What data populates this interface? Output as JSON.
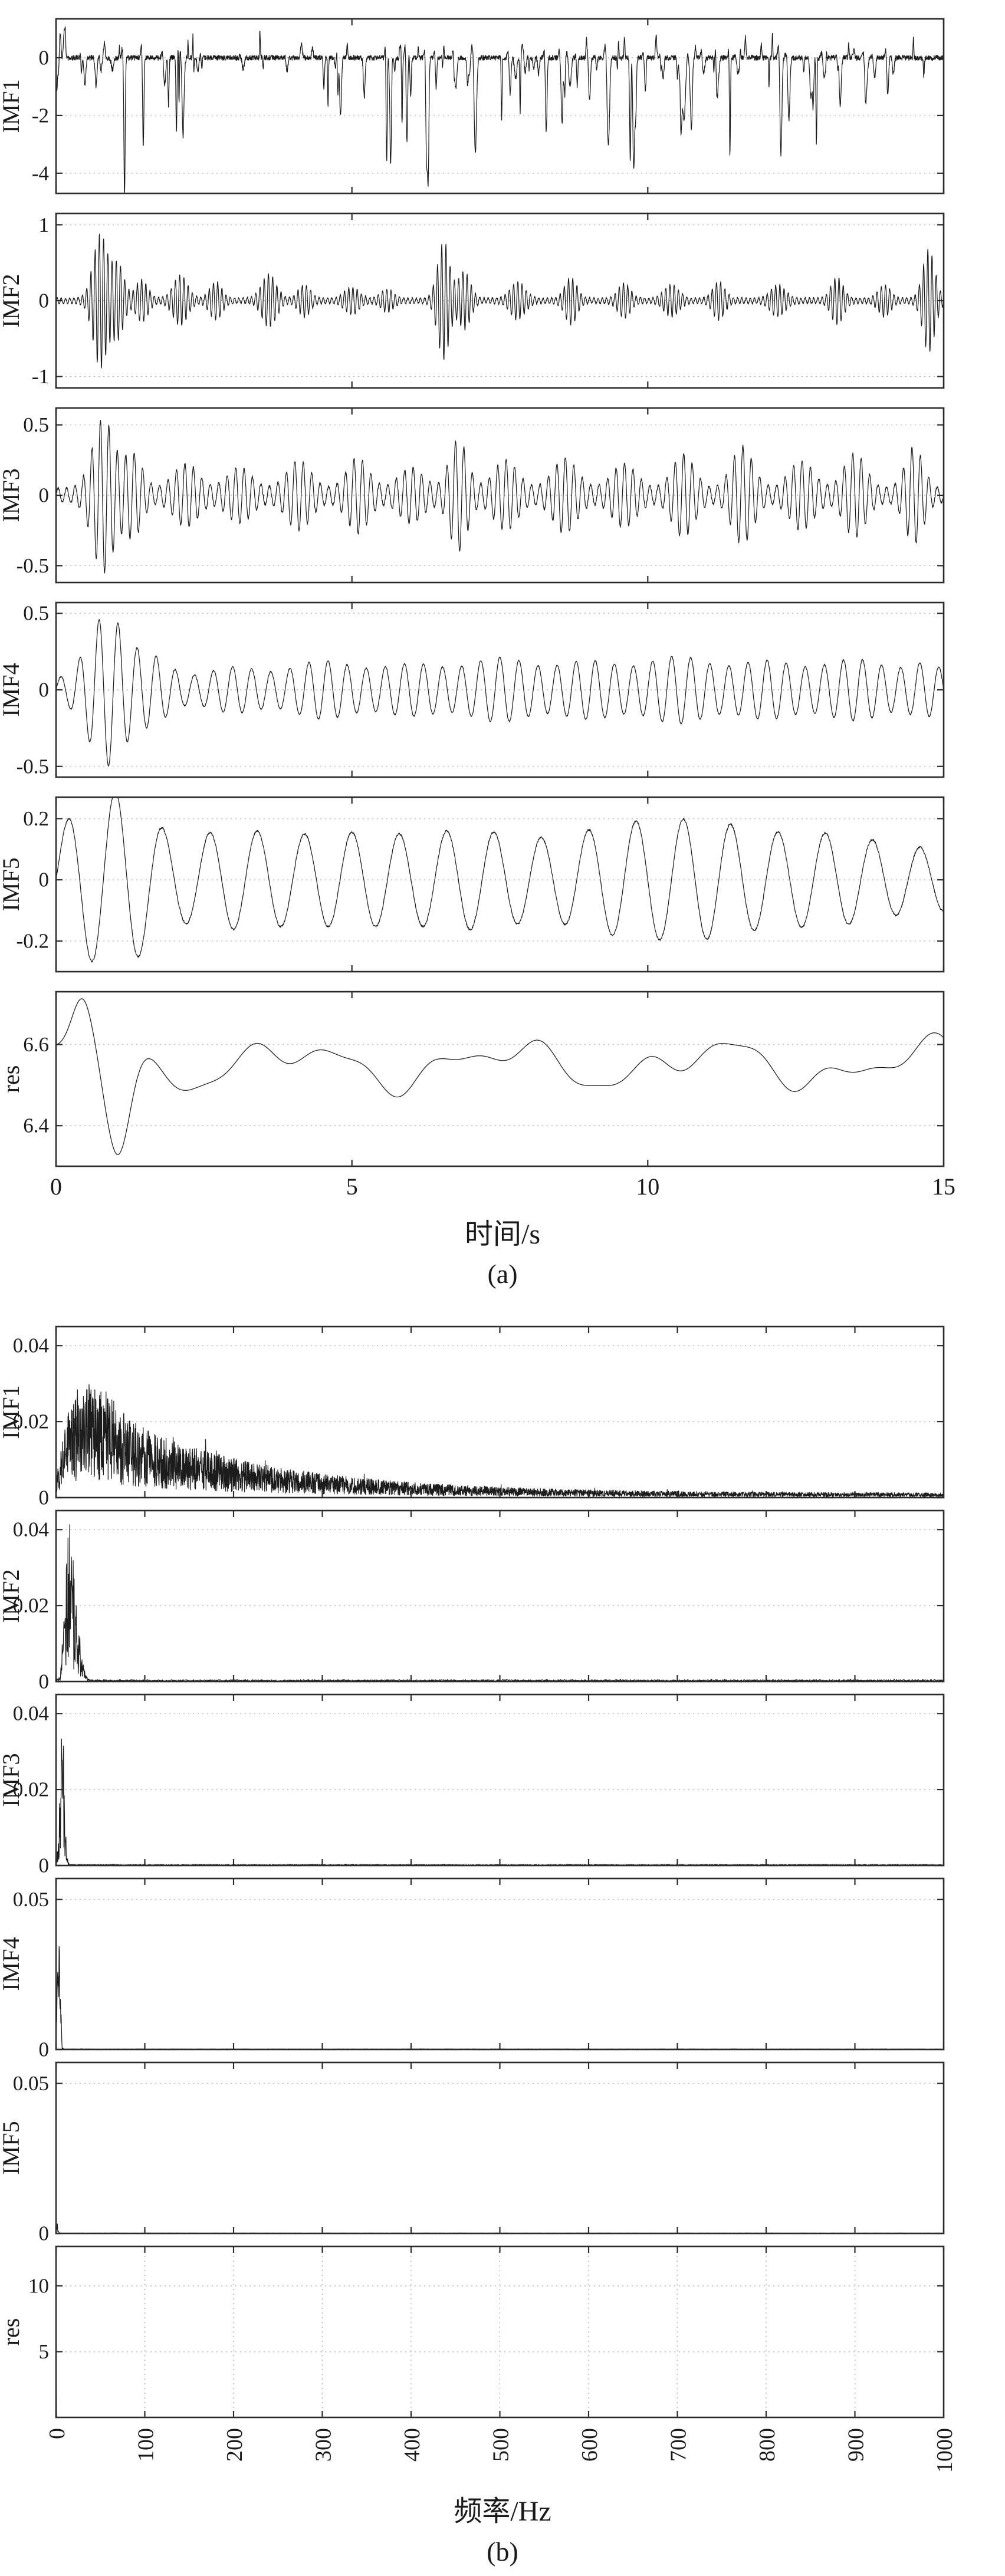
{
  "chart_data": {
    "type": "line",
    "description": "EMD decomposition figure: (a) IMF1-IMF5 and residual time series, (b) corresponding frequency spectra",
    "panel_a": {
      "xlabel": "时间/s",
      "caption": "(a)",
      "xlim": [
        0,
        15
      ],
      "xticks": [
        0,
        5,
        10,
        15
      ],
      "subplots": [
        {
          "label": "IMF1",
          "ylim": [
            -4.7,
            1.35
          ],
          "yticks": [
            0,
            -2,
            -4
          ],
          "grid_y": [
            0,
            -2,
            -4
          ],
          "signal": {
            "gen": "spikes",
            "seed": 11,
            "n": 3600,
            "noise": 0.09,
            "neg_events": 100,
            "neg_amp": [
              0.4,
              3.9
            ],
            "pos_frac": 0.35
          }
        },
        {
          "label": "IMF2",
          "ylim": [
            -1.15,
            1.15
          ],
          "yticks": [
            1,
            0,
            -1
          ],
          "grid_y": [
            1,
            0,
            -1
          ],
          "signal": {
            "gen": "bursts",
            "seed": 22,
            "n": 3600,
            "carrier": 14,
            "base": 0.035,
            "noise": 0.012,
            "bursts": [
              [
                0.75,
                0.85,
                0.12
              ],
              [
                1.05,
                0.45,
                0.1
              ],
              [
                1.45,
                0.25,
                0.1
              ],
              [
                2.1,
                0.3,
                0.12
              ],
              [
                2.7,
                0.22,
                0.1
              ],
              [
                3.6,
                0.32,
                0.12
              ],
              [
                4.2,
                0.18,
                0.1
              ],
              [
                5.0,
                0.15,
                0.12
              ],
              [
                5.6,
                0.12,
                0.1
              ],
              [
                6.55,
                0.75,
                0.1
              ],
              [
                6.9,
                0.35,
                0.1
              ],
              [
                7.8,
                0.22,
                0.12
              ],
              [
                8.7,
                0.28,
                0.1
              ],
              [
                9.6,
                0.2,
                0.1
              ],
              [
                10.4,
                0.18,
                0.12
              ],
              [
                11.2,
                0.22,
                0.1
              ],
              [
                12.2,
                0.18,
                0.12
              ],
              [
                13.2,
                0.28,
                0.1
              ],
              [
                14.0,
                0.18,
                0.1
              ],
              [
                14.75,
                0.65,
                0.1
              ]
            ]
          }
        },
        {
          "label": "IMF3",
          "ylim": [
            -0.62,
            0.62
          ],
          "yticks": [
            0.5,
            0,
            -0.5
          ],
          "grid_y": [
            0.5,
            0,
            -0.5
          ],
          "signal": {
            "gen": "bursts",
            "seed": 33,
            "n": 3600,
            "carrier": 7,
            "base": 0.05,
            "noise": 0.008,
            "bursts": [
              [
                0.8,
                0.5,
                0.18
              ],
              [
                1.3,
                0.25,
                0.15
              ],
              [
                2.2,
                0.18,
                0.2
              ],
              [
                3.1,
                0.15,
                0.2
              ],
              [
                4.1,
                0.2,
                0.2
              ],
              [
                5.1,
                0.22,
                0.18
              ],
              [
                6.0,
                0.15,
                0.2
              ],
              [
                6.8,
                0.35,
                0.15
              ],
              [
                7.6,
                0.2,
                0.2
              ],
              [
                8.6,
                0.22,
                0.2
              ],
              [
                9.6,
                0.18,
                0.2
              ],
              [
                10.6,
                0.25,
                0.18
              ],
              [
                11.6,
                0.3,
                0.18
              ],
              [
                12.6,
                0.2,
                0.2
              ],
              [
                13.5,
                0.25,
                0.18
              ],
              [
                14.5,
                0.3,
                0.15
              ]
            ]
          }
        },
        {
          "label": "IMF4",
          "ylim": [
            -0.57,
            0.57
          ],
          "yticks": [
            0.5,
            0,
            -0.5
          ],
          "grid_y": [
            0.5,
            0,
            -0.5
          ],
          "signal": {
            "gen": "bursts",
            "seed": 44,
            "n": 3200,
            "carrier": 3.1,
            "base": 0.07,
            "noise": 0.004,
            "bursts": [
              [
                0.85,
                0.42,
                0.3
              ],
              [
                1.6,
                0.15,
                0.3
              ],
              [
                3.0,
                0.08,
                0.4
              ],
              [
                4.5,
                0.12,
                0.5
              ],
              [
                6.0,
                0.1,
                0.5
              ],
              [
                7.5,
                0.14,
                0.5
              ],
              [
                9.0,
                0.12,
                0.5
              ],
              [
                10.5,
                0.15,
                0.5
              ],
              [
                12.0,
                0.12,
                0.5
              ],
              [
                13.5,
                0.13,
                0.5
              ],
              [
                14.7,
                0.1,
                0.3
              ]
            ]
          }
        },
        {
          "label": "IMF5",
          "ylim": [
            -0.3,
            0.27
          ],
          "yticks": [
            0.2,
            0,
            -0.2
          ],
          "grid_y": [
            0.2,
            0,
            -0.2
          ],
          "signal": {
            "gen": "bursts",
            "seed": 55,
            "n": 2600,
            "carrier": 1.25,
            "base": 0.1,
            "noise": 0.003,
            "bursts": [
              [
                0.5,
                0.12,
                0.4
              ],
              [
                1.2,
                0.15,
                0.4
              ],
              [
                3.0,
                0.06,
                0.8
              ],
              [
                5.0,
                0.05,
                0.8
              ],
              [
                7.0,
                0.06,
                0.8
              ],
              [
                9.5,
                0.07,
                0.8
              ],
              [
                11.0,
                0.08,
                0.8
              ],
              [
                13.0,
                0.05,
                0.8
              ]
            ]
          }
        },
        {
          "label": "res",
          "ylim": [
            6.3,
            6.73
          ],
          "yticks": [
            6.6,
            6.4
          ],
          "grid_y": [
            6.6,
            6.4
          ],
          "signal": {
            "gen": "trend",
            "seed": 66,
            "n": 1500,
            "mean": 6.55,
            "waves": [
              [
                0.04,
                0.28,
                0.8
              ],
              [
                0.028,
                0.6,
                2.0
              ],
              [
                0.012,
                1.05,
                4.2
              ]
            ],
            "peaks": [
              [
                0.45,
                0.13,
                0.18
              ],
              [
                1.05,
                -0.22,
                0.2
              ]
            ]
          }
        }
      ]
    },
    "panel_b": {
      "xlabel": "频率/Hz",
      "caption": "(b)",
      "xlim": [
        0,
        1000
      ],
      "xticks": [
        0,
        100,
        200,
        300,
        400,
        500,
        600,
        700,
        800,
        900,
        1000
      ],
      "xticks_rotated": true,
      "subplots": [
        {
          "label": "IMF1",
          "ylim": [
            0,
            0.045
          ],
          "yticks": [
            0.04,
            0.02,
            0
          ],
          "grid_y": [
            0.04,
            0.02
          ],
          "signal": {
            "gen": "spectrum",
            "seed": 71,
            "n": 3800,
            "floor": 0.0012,
            "noise": 0.85,
            "broad": {
              "amp": 0.03,
              "tau": 170,
              "rise": 12
            },
            "peaks": [
              [
                40,
                0.006,
                25
              ]
            ]
          }
        },
        {
          "label": "IMF2",
          "ylim": [
            0,
            0.045
          ],
          "yticks": [
            0.04,
            0.02,
            0
          ],
          "grid_y": [
            0.04,
            0.02
          ],
          "signal": {
            "gen": "spectrum",
            "seed": 72,
            "n": 2600,
            "floor": 0.0005,
            "noise": 0.9,
            "peaks": [
              [
                14,
                0.035,
                4
              ],
              [
                22,
                0.02,
                5
              ]
            ]
          }
        },
        {
          "label": "IMF3",
          "ylim": [
            0,
            0.045
          ],
          "yticks": [
            0.04,
            0.02,
            0
          ],
          "grid_y": [
            0.04,
            0.02
          ],
          "signal": {
            "gen": "spectrum",
            "seed": 73,
            "n": 2600,
            "floor": 0.0003,
            "noise": 0.9,
            "peaks": [
              [
                7,
                0.038,
                2.5
              ]
            ]
          }
        },
        {
          "label": "IMF4",
          "ylim": [
            0,
            0.057
          ],
          "yticks": [
            0.05,
            0
          ],
          "grid_y": [
            0.05
          ],
          "signal": {
            "gen": "spectrum",
            "seed": 74,
            "n": 2600,
            "floor": 0.0002,
            "noise": 0.9,
            "peaks": [
              [
                3.2,
                0.052,
                1.5
              ]
            ]
          }
        },
        {
          "label": "IMF5",
          "ylim": [
            0,
            0.057
          ],
          "yticks": [
            0.05,
            0
          ],
          "grid_y": [
            0.05
          ],
          "signal": {
            "gen": "spectrum",
            "seed": 75,
            "n": 2000,
            "floor": 0.00015,
            "noise": 0.8,
            "peaks": [
              [
                1.5,
                0.003,
                0.8
              ]
            ]
          }
        },
        {
          "label": "res",
          "ylim": [
            0,
            13
          ],
          "yticks": [
            10,
            5
          ],
          "grid_y": [
            10,
            5
          ],
          "grid_x": [
            100,
            200,
            300,
            400,
            500,
            600,
            700,
            800,
            900
          ],
          "signal": {
            "gen": "spectrum",
            "seed": 76,
            "n": 1500,
            "floor": 0.02,
            "noise": 0.5,
            "peaks": [
              [
                0.2,
                12,
                0.15
              ]
            ]
          }
        }
      ]
    }
  }
}
